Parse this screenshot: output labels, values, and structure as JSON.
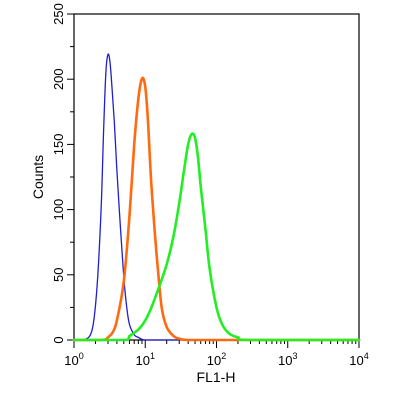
{
  "chart_data": {
    "type": "line",
    "xlabel": "FL1-H",
    "ylabel": "Counts",
    "x_scale": "log",
    "xlim": [
      1,
      10000
    ],
    "ylim": [
      0,
      250
    ],
    "grid": false,
    "legend": "none",
    "x_tick_labels": [
      {
        "value": 1,
        "base": "10",
        "exp": "0"
      },
      {
        "value": 10,
        "base": "10",
        "exp": "1"
      },
      {
        "value": 100,
        "base": "10",
        "exp": "2"
      },
      {
        "value": 1000,
        "base": "10",
        "exp": "3"
      },
      {
        "value": 10000,
        "base": "10",
        "exp": "4"
      }
    ],
    "y_ticks": [
      0,
      50,
      100,
      150,
      200,
      250
    ],
    "series": [
      {
        "color": "#1f1fd0",
        "stroke_width": 1.3,
        "x": [
          1.0,
          1.4,
          1.8,
          2.1,
          2.4,
          2.6,
          2.8,
          3.0,
          3.2,
          3.4,
          3.7,
          4.0,
          4.5,
          5.0,
          5.5,
          6.0,
          7.0,
          8.0,
          10.0,
          20.0,
          100.0,
          10000.0
        ],
        "y": [
          0,
          0,
          8,
          40,
          100,
          160,
          205,
          219,
          213,
          195,
          165,
          130,
          85,
          48,
          25,
          12,
          4,
          2,
          0,
          0,
          0,
          0
        ]
      },
      {
        "color": "#ff6a10",
        "stroke_width": 2.6,
        "x": [
          1.0,
          2.5,
          3.0,
          3.5,
          4.0,
          5.0,
          6.0,
          7.0,
          8.0,
          8.8,
          9.5,
          10.2,
          11.0,
          12.0,
          13.5,
          15.0,
          17.0,
          20.0,
          25.0,
          30.0,
          40.0,
          100.0,
          10000.0
        ],
        "y": [
          0,
          0,
          2,
          6,
          15,
          45,
          95,
          150,
          185,
          199,
          200,
          190,
          165,
          125,
          85,
          55,
          25,
          10,
          3,
          1,
          0,
          0,
          0
        ]
      },
      {
        "color": "#22ee22",
        "stroke_width": 2.6,
        "x": [
          1.0,
          5.0,
          6.0,
          8.0,
          10.0,
          12.0,
          15.0,
          20.0,
          25.0,
          30.0,
          35.0,
          40.0,
          45.0,
          50.0,
          55.0,
          60.0,
          70.0,
          80.0,
          100.0,
          120.0,
          150.0,
          200.0,
          300.0,
          10000.0
        ],
        "y": [
          0,
          0,
          3,
          8,
          15,
          24,
          38,
          58,
          80,
          105,
          130,
          150,
          158,
          155,
          140,
          118,
          85,
          55,
          25,
          12,
          5,
          2,
          0,
          0
        ]
      }
    ]
  }
}
